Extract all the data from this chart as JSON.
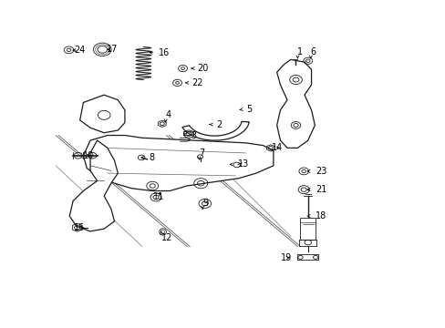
{
  "bg_color": "#ffffff",
  "line_color": "#1a1a1a",
  "gray_color": "#555555",
  "light_gray": "#aaaaaa",
  "labels_positions": {
    "24": [
      0.055,
      0.955,
      "24"
    ],
    "17": [
      0.155,
      0.958,
      "17"
    ],
    "16": [
      0.305,
      0.945,
      "16"
    ],
    "20": [
      0.418,
      0.882,
      "20"
    ],
    "22": [
      0.4,
      0.825,
      "22"
    ],
    "1": [
      0.718,
      0.95,
      "1"
    ],
    "6": [
      0.758,
      0.952,
      "6"
    ],
    "4": [
      0.315,
      0.7,
      "4"
    ],
    "5": [
      0.56,
      0.718,
      "5"
    ],
    "2": [
      0.472,
      0.66,
      "2"
    ],
    "3": [
      0.395,
      0.615,
      "3"
    ],
    "7": [
      0.42,
      0.545,
      "7"
    ],
    "10": [
      0.078,
      0.538,
      "10"
    ],
    "8": [
      0.282,
      0.528,
      "8"
    ],
    "13": [
      0.535,
      0.503,
      "13"
    ],
    "14": [
      0.62,
      0.568,
      "14"
    ],
    "23": [
      0.76,
      0.475,
      "23"
    ],
    "21": [
      0.76,
      0.402,
      "21"
    ],
    "11": [
      0.285,
      0.372,
      "11"
    ],
    "9": [
      0.432,
      0.358,
      "9"
    ],
    "18": [
      0.76,
      0.298,
      "18"
    ],
    "15": [
      0.055,
      0.252,
      "15"
    ],
    "12": [
      0.315,
      0.21,
      "12"
    ],
    "19": [
      0.655,
      0.132,
      "19"
    ]
  },
  "arrow_data": {
    "24": [
      0.085,
      0.955,
      0.068,
      0.955
    ],
    "17": [
      0.185,
      0.958,
      0.168,
      0.958
    ],
    "16": [
      0.295,
      0.945,
      0.278,
      0.945
    ],
    "20": [
      0.408,
      0.882,
      0.391,
      0.882
    ],
    "22": [
      0.39,
      0.825,
      0.373,
      0.825
    ],
    "1": [
      0.718,
      0.94,
      0.718,
      0.92
    ],
    "6": [
      0.758,
      0.94,
      0.758,
      0.92
    ],
    "4": [
      0.315,
      0.688,
      0.315,
      0.668
    ],
    "5": [
      0.548,
      0.718,
      0.53,
      0.718
    ],
    "2": [
      0.458,
      0.66,
      0.442,
      0.66
    ],
    "3": [
      0.383,
      0.615,
      0.37,
      0.628
    ],
    "7": [
      0.42,
      0.533,
      0.42,
      0.518
    ],
    "10": [
      0.098,
      0.538,
      0.115,
      0.538
    ],
    "8": [
      0.27,
      0.528,
      0.255,
      0.528
    ],
    "13": [
      0.523,
      0.503,
      0.508,
      0.503
    ],
    "14": [
      0.632,
      0.568,
      0.648,
      0.568
    ],
    "23": [
      0.748,
      0.475,
      0.732,
      0.475
    ],
    "21": [
      0.748,
      0.402,
      0.732,
      0.402
    ],
    "11": [
      0.297,
      0.372,
      0.31,
      0.385
    ],
    "9": [
      0.432,
      0.346,
      0.432,
      0.33
    ],
    "18": [
      0.748,
      0.298,
      0.732,
      0.298
    ],
    "15": [
      0.075,
      0.252,
      0.092,
      0.252
    ],
    "12": [
      0.315,
      0.222,
      0.315,
      0.238
    ],
    "19": [
      0.668,
      0.132,
      0.682,
      0.132
    ]
  }
}
